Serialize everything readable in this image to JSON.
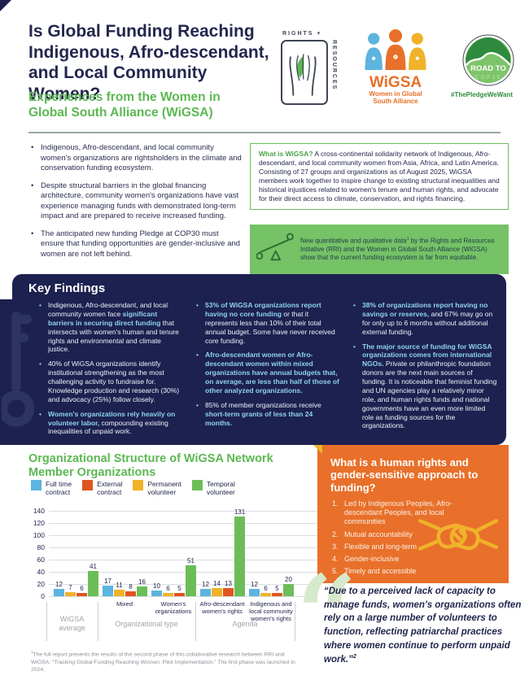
{
  "colors": {
    "navy": "#1D2150",
    "green": "#5CB852",
    "orange_box": "#E8702A",
    "bar_blue": "#5DB4DE",
    "bar_yellow": "#F0B22A",
    "bar_orange": "#DF551F",
    "bar_green": "#6CBD57",
    "highlight_blue": "#8ED3F0"
  },
  "header": {
    "title": "Is Global Funding Reaching Indigenous, Afro-descendant, and Local Community Women?",
    "subtitle": "Experiences from the Women in Global South Alliance (WiGSA)"
  },
  "logos": {
    "rri": {
      "line_top": "RIGHTS +",
      "line_side": "RESOURCES"
    },
    "wigsa": {
      "acronym": "WiGSA",
      "name": "Women in Global\nSouth Alliance"
    },
    "cop30": {
      "arc_text": "ROAD TO",
      "cop": "COP30",
      "hashtag": "#ThePledgeWeWant"
    }
  },
  "intro_bullets": [
    "Indigenous, Afro-descendant, and local community women's organizations are rightsholders in the climate and conservation funding ecosystem.",
    "Despite structural barriers in the global financing architecture, community women's organizations have vast experience managing funds with demonstrated long-term impact and are prepared to receive increased funding.",
    "The anticipated new funding Pledge at COP30 must ensure that funding opportunities are gender-inclusive and women are not left behind."
  ],
  "wigsa_box": {
    "segments": [
      {
        "t": "What is WiGSA?",
        "cls": "lead-green"
      },
      {
        "t": " A cross-continental solidarity network of Indigenous, Afro-descendant, and local community women from Asia, Africa, and Latin America. Consisting of 27 groups and organizations as of August 2025, WiGSA members work together to inspire change to existing structural inequalities and historical injustices related to women's tenure and human rights, and advocate for their direct access to climate, conservation, and rights financing."
      }
    ]
  },
  "data_banner": {
    "segments": [
      {
        "t": "New quantitative and qualitative data"
      },
      {
        "t": "1",
        "sup": true
      },
      {
        "t": " by the Rights and Resources Initiative (RRI) and the Women in Global South Alliance (WiGSA) show that the current funding ecosystem is far from equitable."
      }
    ]
  },
  "key_findings": {
    "heading": "Key Findings",
    "columns": [
      [
        [
          {
            "t": "Indigenous, Afro-descendant, and local community women face "
          },
          {
            "t": "significant barriers in securing direct funding",
            "b": true
          },
          {
            "t": " that intersects with women's human and tenure rights and environmental and climate justice."
          }
        ],
        [
          {
            "t": "40% of WiGSA organizations identify institutional strengthening as the most challenging activity to fundraise for. Knowledge production and research (30%) and advocacy (25%) follow closely."
          }
        ],
        [
          {
            "t": "Women's organizations rely heavily on volunteer labor,",
            "b": true
          },
          {
            "t": " compounding existing inequalities of unpaid work."
          }
        ]
      ],
      [
        [
          {
            "t": "53% of WiGSA organizations report having no core funding",
            "b": true
          },
          {
            "t": " or that it represents less than 10% of their total annual budget. Some have never received core funding."
          }
        ],
        [
          {
            "t": "Afro-descendant women or Afro-descendant women within mixed organizations have annual budgets that, on average, are less than half of those of other analyzed organizations.",
            "b": true
          }
        ],
        [
          {
            "t": "85% of member organizations receive "
          },
          {
            "t": "short-term grants of less than 24 months.",
            "b": true
          }
        ]
      ],
      [
        [
          {
            "t": "38% of organizations report having no savings or reserves,",
            "b": true
          },
          {
            "t": " and 67% may go on for only up to 6 months without additional external funding."
          }
        ],
        [
          {
            "t": "The major source of funding for WiGSA organizations comes from international NGOs.",
            "b": true
          },
          {
            "t": " Private or philanthropic foundation donors are the next main sources of funding. It is noticeable that feminist funding and UN agencies play a relatively minor role, and human rights funds and national governments have an even more limited role as funding sources for the organizations."
          }
        ]
      ]
    ]
  },
  "chart_data": {
    "type": "bar",
    "title": "Organizational Structure of WiGSA Network Member Organizations",
    "categories": [
      "WiGSA average",
      "Mixed",
      "Women's organizations",
      "Afro-descendant women's rights",
      "Indigenous and local community women's rights"
    ],
    "category_label_lines": [
      [],
      [
        "Mixed"
      ],
      [
        "Women's",
        "organizations"
      ],
      [
        "Afro-descendant",
        "women's rights"
      ],
      [
        "Indigenous and",
        "local community",
        "women's rights"
      ]
    ],
    "series": [
      {
        "name": "Full time contract",
        "color": "#5DB4DE",
        "values": [
          12,
          17,
          10,
          12,
          12
        ]
      },
      {
        "name": "Permanent volunteer",
        "color": "#F0B22A",
        "values": [
          7,
          11,
          6,
          14,
          6
        ]
      },
      {
        "name": "External contract",
        "color": "#DF551F",
        "values": [
          6,
          8,
          5,
          13,
          5
        ]
      },
      {
        "name": "Temporal volunteer",
        "color": "#6CBD57",
        "values": [
          41,
          16,
          51,
          131,
          20
        ]
      }
    ],
    "legend": [
      {
        "label": "Full time contract",
        "label_lines": [
          "Full time",
          "contract"
        ],
        "color": "#5DB4DE"
      },
      {
        "label": "External contract",
        "label_lines": [
          "External",
          "contract"
        ],
        "color": "#DF551F"
      },
      {
        "label": "Permanent volunteer",
        "label_lines": [
          "Permanent",
          "volunteer"
        ],
        "color": "#F0B22A"
      },
      {
        "label": "Temporal volunteer",
        "label_lines": [
          "Temporal",
          "volunteer"
        ],
        "color": "#6CBD57"
      }
    ],
    "ylim": [
      0,
      140
    ],
    "ytick_step": 20,
    "grid": true,
    "legend_position": "top",
    "groups": [
      {
        "label_lines": [
          "WiGSA",
          "average"
        ],
        "span": [
          0,
          0
        ]
      },
      {
        "label_lines": [
          "Organizational type"
        ],
        "span": [
          1,
          2
        ]
      },
      {
        "label_lines": [
          "Agenda"
        ],
        "span": [
          3,
          4
        ]
      }
    ]
  },
  "orange_box": {
    "title": "What is a human rights and gender-sensitive approach to funding?",
    "items": [
      "Led by Indigenous Peoples, Afro-descendant Peoples, and local communities",
      "Mutual accountability",
      "Flexible and long-term",
      "Gender-inclusive",
      "Timely and accessible"
    ]
  },
  "quote": {
    "mark": "“",
    "segments": [
      {
        "t": "“Due to a perceived lack of capacity to manage funds, women's organizations often rely on a large number of volunteers to function, reflecting patriarchal practices where women continue to perform unpaid work.”"
      },
      {
        "t": "2",
        "sup": true
      }
    ]
  },
  "footnote": {
    "segments": [
      {
        "t": "1",
        "sup": true
      },
      {
        "t": "The full report presents the results of the second phase of this collaborative research between RRI and WiGSA: “Tracking Global Funding Reaching Women: Pilot Implementation.” The first phase was launched in 2024."
      }
    ]
  }
}
